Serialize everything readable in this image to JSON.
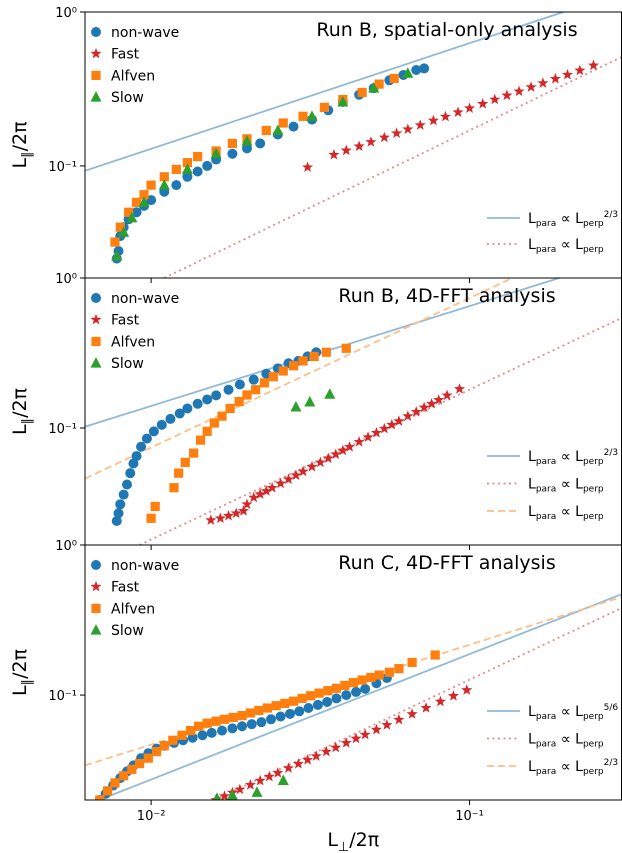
{
  "chart_data": [
    {
      "type": "scatter",
      "title": "Run B, spatial-only analysis",
      "xscale": "log",
      "yscale": "log",
      "ylabel": [
        "L",
        "∥",
        "/2π"
      ],
      "xlim": [
        0.0062,
        0.3
      ],
      "ylim": [
        0.0187,
        1
      ],
      "xticks": [
        0.01,
        0.1
      ],
      "yticks": [
        {
          "value": 1,
          "label": "10⁰"
        },
        {
          "value": 0.1,
          "label": "10⁻¹"
        }
      ],
      "series": [
        {
          "name": "non-wave",
          "color": "#1f77b4",
          "marker": "circle",
          "x": [
            0.0078,
            0.0079,
            0.008,
            0.0082,
            0.0085,
            0.009,
            0.0095,
            0.01,
            0.011,
            0.012,
            0.013,
            0.014,
            0.015,
            0.016,
            0.018,
            0.02,
            0.022,
            0.025,
            0.028,
            0.032,
            0.036,
            0.04,
            0.045,
            0.05,
            0.056,
            0.062,
            0.068,
            0.072
          ],
          "values": [
            0.025,
            0.028,
            0.035,
            0.04,
            0.045,
            0.05,
            0.055,
            0.06,
            0.068,
            0.075,
            0.085,
            0.092,
            0.1,
            0.11,
            0.12,
            0.13,
            0.14,
            0.16,
            0.18,
            0.2,
            0.23,
            0.26,
            0.29,
            0.32,
            0.36,
            0.39,
            0.42,
            0.43
          ]
        },
        {
          "name": "Fast",
          "color": "#d62728",
          "marker": "star",
          "x": [
            0.031,
            0.0375,
            0.041,
            0.045,
            0.049,
            0.054,
            0.059,
            0.064,
            0.07,
            0.077,
            0.084,
            0.092,
            0.1,
            0.11,
            0.12,
            0.131,
            0.143,
            0.156,
            0.17,
            0.186,
            0.203,
            0.222,
            0.245
          ],
          "values": [
            0.098,
            0.118,
            0.126,
            0.134,
            0.143,
            0.153,
            0.163,
            0.173,
            0.184,
            0.197,
            0.209,
            0.223,
            0.237,
            0.253,
            0.27,
            0.287,
            0.305,
            0.325,
            0.345,
            0.368,
            0.391,
            0.417,
            0.45
          ]
        },
        {
          "name": "Alfven",
          "color": "#ff7f0e",
          "marker": "square",
          "x": [
            0.0077,
            0.008,
            0.0085,
            0.009,
            0.0095,
            0.01,
            0.011,
            0.012,
            0.013,
            0.014,
            0.016,
            0.018,
            0.02,
            0.023,
            0.026,
            0.03,
            0.035,
            0.04,
            0.046,
            0.052,
            0.058
          ],
          "values": [
            0.032,
            0.04,
            0.05,
            0.058,
            0.065,
            0.075,
            0.085,
            0.095,
            0.105,
            0.115,
            0.125,
            0.14,
            0.15,
            0.17,
            0.19,
            0.21,
            0.24,
            0.27,
            0.3,
            0.34,
            0.37
          ]
        },
        {
          "name": "Slow",
          "color": "#2ca02c",
          "marker": "triangle",
          "x": [
            0.0078,
            0.0082,
            0.0087,
            0.0095,
            0.011,
            0.013,
            0.016,
            0.02,
            0.025,
            0.032,
            0.04,
            0.05,
            0.064
          ],
          "values": [
            0.026,
            0.037,
            0.046,
            0.058,
            0.075,
            0.095,
            0.12,
            0.145,
            0.17,
            0.21,
            0.26,
            0.32,
            0.4
          ]
        }
      ],
      "fits": [
        {
          "label": [
            "L",
            "para",
            " ∝ L",
            "perp",
            "2/3"
          ],
          "color": "#91bad9",
          "style": "solid",
          "x": [
            0.0062,
            0.197
          ],
          "values": [
            0.093,
            1.0
          ]
        },
        {
          "label": [
            "L",
            "para",
            " ∝ L",
            "perp",
            ""
          ],
          "color": "#e88a88",
          "style": "dotted",
          "x": [
            0.011,
            0.3
          ],
          "values": [
            0.0187,
            0.51
          ]
        }
      ]
    },
    {
      "type": "scatter",
      "title": "Run B, 4D-FFT analysis",
      "xscale": "log",
      "yscale": "log",
      "ylabel": [
        "L",
        "∥",
        "/2π"
      ],
      "xlim": [
        0.0062,
        0.3
      ],
      "ylim": [
        0.0166,
        1
      ],
      "xticks": [
        0.01,
        0.1
      ],
      "yticks": [
        {
          "value": 1,
          "label": "10⁰"
        },
        {
          "value": 0.1,
          "label": "10⁻¹"
        }
      ],
      "series": [
        {
          "name": "non-wave",
          "color": "#1f77b4",
          "marker": "circle",
          "x": [
            0.0078,
            0.0079,
            0.008,
            0.0082,
            0.0084,
            0.0086,
            0.0088,
            0.009,
            0.0093,
            0.0097,
            0.0102,
            0.0108,
            0.0115,
            0.0123,
            0.013,
            0.014,
            0.015,
            0.016,
            0.0175,
            0.019,
            0.021,
            0.023,
            0.025,
            0.027,
            0.029,
            0.031,
            0.033
          ],
          "values": [
            0.024,
            0.027,
            0.031,
            0.036,
            0.042,
            0.05,
            0.058,
            0.065,
            0.075,
            0.085,
            0.095,
            0.105,
            0.115,
            0.125,
            0.135,
            0.145,
            0.155,
            0.165,
            0.18,
            0.195,
            0.21,
            0.23,
            0.25,
            0.27,
            0.28,
            0.3,
            0.32
          ]
        },
        {
          "name": "Fast",
          "color": "#d62728",
          "marker": "star",
          "x": [
            0.0154,
            0.0165,
            0.0175,
            0.0185,
            0.0195,
            0.02,
            0.021,
            0.022,
            0.023,
            0.024,
            0.0255,
            0.027,
            0.0285,
            0.03,
            0.032,
            0.034,
            0.036,
            0.038,
            0.04,
            0.042,
            0.045,
            0.048,
            0.051,
            0.054,
            0.057,
            0.06,
            0.064,
            0.068,
            0.072,
            0.076,
            0.08,
            0.085,
            0.093
          ],
          "values": [
            0.0243,
            0.025,
            0.026,
            0.027,
            0.028,
            0.031,
            0.0344,
            0.0362,
            0.038,
            0.0399,
            0.0427,
            0.0455,
            0.0484,
            0.0513,
            0.0551,
            0.059,
            0.0628,
            0.0668,
            0.0708,
            0.0748,
            0.0808,
            0.0868,
            0.0929,
            0.099,
            0.105,
            0.111,
            0.12,
            0.128,
            0.137,
            0.145,
            0.154,
            0.165,
            0.182
          ]
        },
        {
          "name": "Alfven",
          "color": "#ff7f0e",
          "marker": "square",
          "x": [
            0.01,
            0.0103,
            0.0118,
            0.0122,
            0.0128,
            0.0136,
            0.0143,
            0.015,
            0.0158,
            0.0167,
            0.0177,
            0.0189,
            0.02,
            0.0213,
            0.0227,
            0.0242,
            0.026,
            0.028,
            0.03,
            0.0325,
            0.0355,
            0.041
          ],
          "values": [
            0.025,
            0.03,
            0.04,
            0.05,
            0.059,
            0.068,
            0.083,
            0.095,
            0.108,
            0.12,
            0.135,
            0.15,
            0.166,
            0.18,
            0.2,
            0.22,
            0.24,
            0.26,
            0.28,
            0.3,
            0.32,
            0.34
          ]
        },
        {
          "name": "Slow",
          "color": "#2ca02c",
          "marker": "triangle",
          "x": [
            0.0285,
            0.0315,
            0.0364
          ],
          "values": [
            0.138,
            0.149,
            0.168
          ]
        }
      ],
      "fits": [
        {
          "label": [
            "L",
            "para",
            " ∝ L",
            "perp",
            "2/3"
          ],
          "color": "#91bad9",
          "style": "solid",
          "x": [
            0.0062,
            0.3
          ],
          "values": [
            0.102,
            1.35
          ]
        },
        {
          "label": [
            "L",
            "para",
            " ∝ L",
            "perp",
            ""
          ],
          "color": "#e88a88",
          "style": "dotted",
          "x": [
            0.0092,
            0.3
          ],
          "values": [
            0.0166,
            0.54
          ]
        },
        {
          "label": [
            "L",
            "para",
            " ∝ L",
            "perp",
            ""
          ],
          "color": "#ffbf86",
          "style": "dashed",
          "x": [
            0.0062,
            0.3
          ],
          "values": [
            0.046,
            2.2
          ]
        }
      ]
    },
    {
      "type": "scatter",
      "title": "Run C, 4D-FFT analysis",
      "xscale": "log",
      "yscale": "log",
      "ylabel": [
        "L",
        "∥",
        "/2π"
      ],
      "xlabel": [
        "L",
        "⊥",
        "/2π"
      ],
      "xlim": [
        0.0062,
        0.3
      ],
      "ylim": [
        0.02,
        1
      ],
      "xticks": [
        {
          "value": 0.01,
          "label": "10⁻²"
        },
        {
          "value": 0.1,
          "label": "10⁻¹"
        }
      ],
      "yticks": [
        {
          "value": 1,
          "label": "10⁰"
        },
        {
          "value": 0.1,
          "label": "10⁻¹"
        }
      ],
      "series": [
        {
          "name": "non-wave",
          "color": "#1f77b4",
          "marker": "circle",
          "x": [
            0.0069,
            0.0072,
            0.0076,
            0.008,
            0.0084,
            0.0088,
            0.0093,
            0.0098,
            0.0104,
            0.011,
            0.0118,
            0.0126,
            0.0135,
            0.0145,
            0.0155,
            0.0167,
            0.018,
            0.0193,
            0.0207,
            0.0222,
            0.0238,
            0.0255,
            0.0273,
            0.0292,
            0.0312,
            0.0334,
            0.0357,
            0.0382,
            0.041,
            0.044,
            0.047,
            0.051,
            0.055
          ],
          "values": [
            0.02,
            0.022,
            0.025,
            0.028,
            0.031,
            0.034,
            0.038,
            0.041,
            0.044,
            0.046,
            0.048,
            0.05,
            0.052,
            0.054,
            0.056,
            0.058,
            0.06,
            0.062,
            0.064,
            0.066,
            0.069,
            0.072,
            0.075,
            0.078,
            0.082,
            0.086,
            0.09,
            0.095,
            0.1,
            0.105,
            0.11,
            0.12,
            0.13
          ]
        },
        {
          "name": "Fast",
          "color": "#d62728",
          "marker": "star",
          "x": [
            0.016,
            0.017,
            0.018,
            0.019,
            0.0205,
            0.022,
            0.0235,
            0.025,
            0.027,
            0.029,
            0.031,
            0.033,
            0.0355,
            0.038,
            0.041,
            0.044,
            0.047,
            0.051,
            0.055,
            0.06,
            0.066,
            0.073,
            0.081,
            0.089,
            0.098
          ],
          "values": [
            0.02,
            0.0212,
            0.0224,
            0.0235,
            0.0252,
            0.0269,
            0.0286,
            0.0303,
            0.0326,
            0.0348,
            0.037,
            0.0392,
            0.042,
            0.0447,
            0.048,
            0.0513,
            0.0545,
            0.0588,
            0.0632,
            0.0685,
            0.0747,
            0.0821,
            0.0905,
            0.0987,
            0.108
          ]
        },
        {
          "name": "Alfven",
          "color": "#ff7f0e",
          "marker": "square",
          "x": [
            0.0069,
            0.0073,
            0.0077,
            0.0082,
            0.0087,
            0.0092,
            0.0098,
            0.0104,
            0.011,
            0.0117,
            0.0125,
            0.0133,
            0.0141,
            0.015,
            0.016,
            0.017,
            0.0181,
            0.0193,
            0.0205,
            0.0218,
            0.0232,
            0.0247,
            0.0263,
            0.028,
            0.0298,
            0.0317,
            0.0337,
            0.0359,
            0.0382,
            0.0406,
            0.0432,
            0.046,
            0.049,
            0.052,
            0.056,
            0.06,
            0.066,
            0.078
          ],
          "values": [
            0.02,
            0.023,
            0.026,
            0.029,
            0.032,
            0.035,
            0.038,
            0.042,
            0.046,
            0.05,
            0.054,
            0.058,
            0.062,
            0.065,
            0.067,
            0.069,
            0.071,
            0.073,
            0.076,
            0.079,
            0.082,
            0.085,
            0.088,
            0.091,
            0.095,
            0.099,
            0.103,
            0.107,
            0.111,
            0.116,
            0.121,
            0.126,
            0.131,
            0.136,
            0.142,
            0.15,
            0.165,
            0.185
          ]
        },
        {
          "name": "Slow",
          "color": "#2ca02c",
          "marker": "triangle",
          "x": [
            0.0161,
            0.018,
            0.0215,
            0.026
          ],
          "values": [
            0.0205,
            0.0215,
            0.0225,
            0.027
          ]
        }
      ],
      "fits": [
        {
          "label": [
            "L",
            "para",
            " ∝ L",
            "perp",
            "5/6"
          ],
          "color": "#91bad9",
          "style": "solid",
          "x": [
            0.00687,
            0.3
          ],
          "values": [
            0.02,
            0.47
          ]
        },
        {
          "label": [
            "L",
            "para",
            " ∝ L",
            "perp",
            ""
          ],
          "color": "#e88a88",
          "style": "dotted",
          "x": [
            0.0158,
            0.3
          ],
          "values": [
            0.02,
            0.38
          ]
        },
        {
          "label": [
            "L",
            "para",
            " ∝ L",
            "perp",
            "2/3"
          ],
          "color": "#ffbf86",
          "style": "dashed",
          "x": [
            0.0062,
            0.3
          ],
          "values": [
            0.034,
            0.45
          ]
        }
      ]
    }
  ]
}
